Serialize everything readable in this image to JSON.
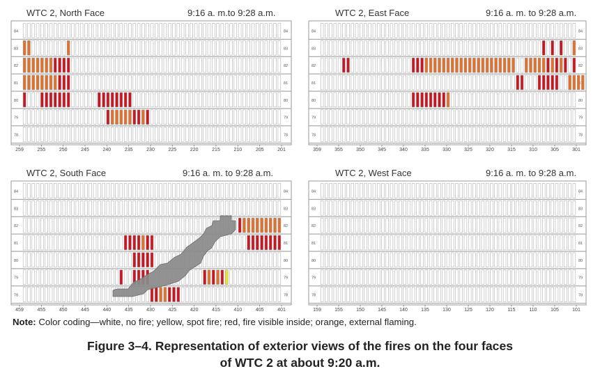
{
  "colors": {
    "white": "#ffffff",
    "yellow": "#e8e632",
    "red": "#cc1520",
    "orange": "#e4702a",
    "gray": "#8a8a8a"
  },
  "legend": {
    "note_label": "Note:",
    "note_text": " Color coding—white, no fire; yellow, spot fire; red, fire visible inside; orange, external flaming."
  },
  "caption": {
    "line1": "Figure 3–4.  Representation of exterior views of the fires on the four faces",
    "line2": "of WTC 2 at about 9:20 a.m."
  },
  "floors": [
    "84",
    "83",
    "82",
    "81",
    "80",
    "79",
    "78"
  ],
  "panels": [
    {
      "id": "north",
      "title": "WTC 2, North Face",
      "time": "9:16 a. m.to 9:28 a.m.",
      "columns": 59,
      "xticks": [
        "259",
        "255",
        "250",
        "245",
        "240",
        "235",
        "230",
        "225",
        "220",
        "215",
        "210",
        "205",
        "201"
      ],
      "fires": [
        {
          "floor": "83",
          "cells": [
            "O",
            "O",
            10,
            "O"
          ]
        },
        {
          "floor": "82",
          "cells": [
            "O",
            "O",
            "O",
            "O",
            "O",
            "O",
            "O",
            "R",
            "R",
            "R",
            "R"
          ]
        },
        {
          "floor": "81",
          "cells": [
            "O",
            "O",
            "O",
            "O",
            "O",
            "O",
            "O",
            "O",
            "R",
            "R",
            "R"
          ]
        },
        {
          "floor": "80",
          "cells": [
            "R",
            4,
            "R",
            "R",
            "R",
            "R",
            "R",
            "R",
            "R",
            17,
            "R",
            "R",
            "R",
            "R",
            "R",
            "R",
            "R",
            "R"
          ]
        },
        {
          "floor": "79",
          "cells": [
            19,
            "R",
            "O",
            "O",
            "O",
            "O",
            "O",
            "R",
            "R",
            "O",
            "R"
          ]
        }
      ]
    },
    {
      "id": "east",
      "title": "WTC 2, East Face",
      "time": "9:16 a. m. to 9:28 a.m.",
      "columns": 59,
      "xticks": [
        "359",
        "355",
        "350",
        "345",
        "340",
        "335",
        "330",
        "325",
        "320",
        "315",
        "310",
        "305",
        "301"
      ],
      "fires": [
        {
          "floor": "83",
          "cells": [
            51,
            "R",
            53,
            "R",
            55,
            "R",
            58,
            "O"
          ]
        },
        {
          "floor": "82",
          "cells": [
            5,
            "R",
            "R",
            21,
            "R",
            "R",
            "R",
            "O",
            "O",
            "O",
            "O",
            "O",
            "O",
            "O",
            "O",
            "O",
            "O",
            "O",
            "O",
            "O",
            "O",
            "O",
            "O",
            "O",
            "O",
            "O",
            "O",
            "O",
            47,
            "O",
            "O",
            "O",
            "O",
            "O",
            "R",
            "O",
            "R",
            "O",
            "R",
            58,
            "R"
          ]
        },
        {
          "floor": "81",
          "cells": [
            45,
            "R",
            "R",
            50,
            "R",
            "R",
            "R",
            "R",
            "R",
            57,
            "O",
            "O",
            "O",
            "O"
          ]
        },
        {
          "floor": "80",
          "cells": [
            21,
            "R",
            "R",
            "R",
            "R",
            "R",
            "R",
            "R",
            "R",
            "O"
          ]
        }
      ]
    },
    {
      "id": "south",
      "title": "WTC 2, South Face",
      "time": "9:16 a. m. to 9:28 a.m.",
      "columns": 59,
      "xticks": [
        "459",
        "455",
        "450",
        "445",
        "440",
        "435",
        "430",
        "425",
        "420",
        "415",
        "410",
        "405",
        "401"
      ],
      "fires": [
        {
          "floor": "82",
          "cells": [
            49,
            "R",
            "O",
            "O",
            "O",
            "O",
            "O",
            "O",
            "O",
            "O",
            "O"
          ]
        },
        {
          "floor": "81",
          "cells": [
            23,
            "R",
            "R",
            "R",
            "R",
            "O",
            "R",
            "R",
            51,
            "R",
            "R",
            "R",
            "R",
            "R",
            "R",
            "R",
            "R"
          ]
        },
        {
          "floor": "80",
          "cells": [
            25,
            "R",
            "R",
            "R",
            "R",
            "R"
          ]
        },
        {
          "floor": "79",
          "cells": [
            22,
            "R",
            25,
            "R",
            "R",
            "R",
            "R",
            41,
            "R",
            "O",
            "R",
            "O",
            "R",
            "Y"
          ]
        },
        {
          "floor": "78",
          "cells": [
            29,
            "R",
            "R",
            "O",
            "O",
            "R",
            "R",
            "R"
          ]
        }
      ]
    },
    {
      "id": "west",
      "title": "WTC 2, West Face",
      "time": "9:16 a. m. to 9:28 a.m.",
      "columns": 59,
      "xticks": [
        "159",
        "155",
        "150",
        "145",
        "140",
        "135",
        "130",
        "125",
        "120",
        "115",
        "110",
        "105",
        "101"
      ],
      "fires": []
    }
  ]
}
